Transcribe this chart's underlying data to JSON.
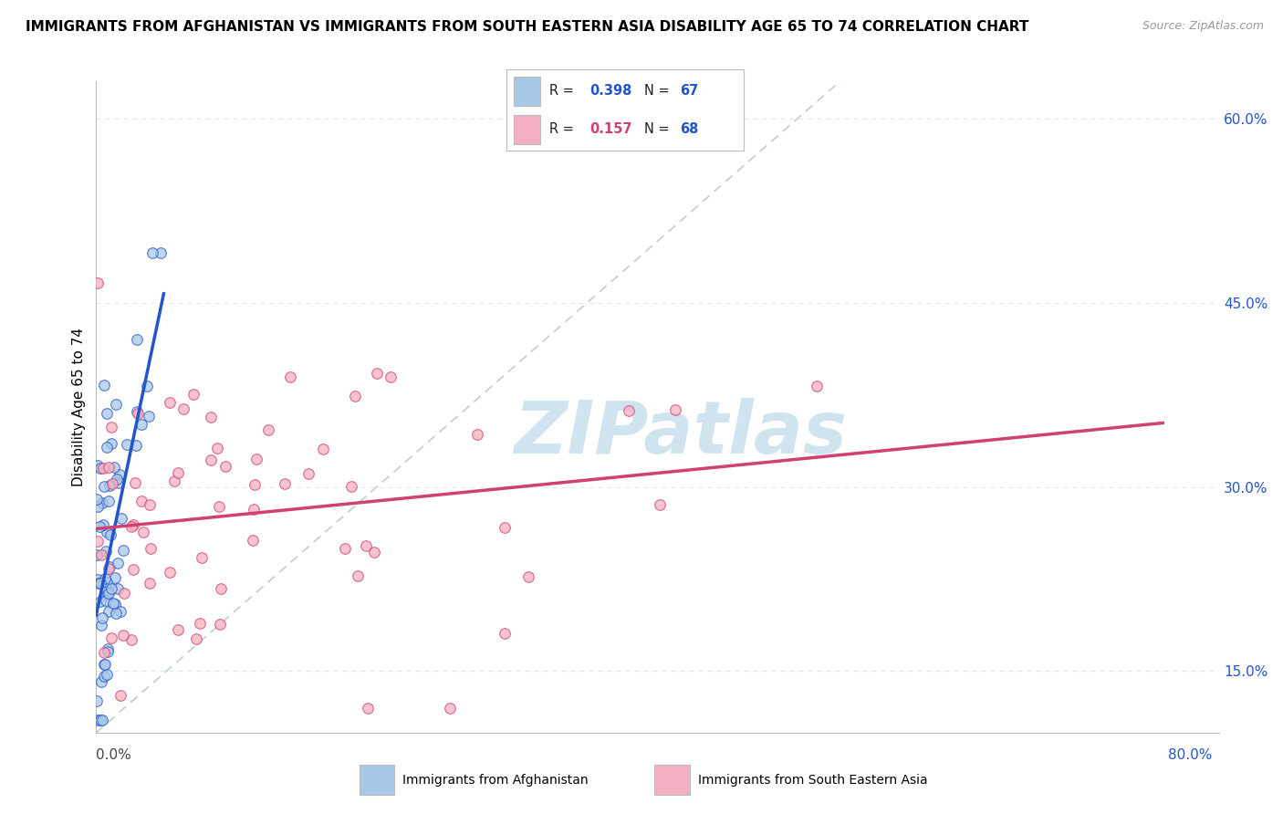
{
  "title": "IMMIGRANTS FROM AFGHANISTAN VS IMMIGRANTS FROM SOUTH EASTERN ASIA DISABILITY AGE 65 TO 74 CORRELATION CHART",
  "source": "Source: ZipAtlas.com",
  "ylabel": "Disability Age 65 to 74",
  "legend_label1": "Immigrants from Afghanistan",
  "legend_label2": "Immigrants from South Eastern Asia",
  "r1": 0.398,
  "n1": 67,
  "r2": 0.157,
  "n2": 68,
  "xmin": 0.0,
  "xmax": 80.0,
  "ymin": 10.0,
  "ymax": 63.0,
  "yticks": [
    15.0,
    30.0,
    45.0,
    60.0
  ],
  "ytick_labels": [
    "15.0%",
    "30.0%",
    "45.0%",
    "60.0%"
  ],
  "xtick_left": "0.0%",
  "xtick_right": "80.0%",
  "color_blue_fill": "#a8c8e8",
  "color_pink_fill": "#f4b0c0",
  "line_blue": "#2255cc",
  "line_pink": "#d04070",
  "watermark_text": "ZIPatlas",
  "watermark_color": "#d0e4f0",
  "bg_color": "#ffffff",
  "grid_color": "#e0e8f0",
  "diag_color": "#c0ccd8",
  "title_fontsize": 11,
  "source_fontsize": 9,
  "tick_fontsize": 11,
  "ylabel_fontsize": 11
}
